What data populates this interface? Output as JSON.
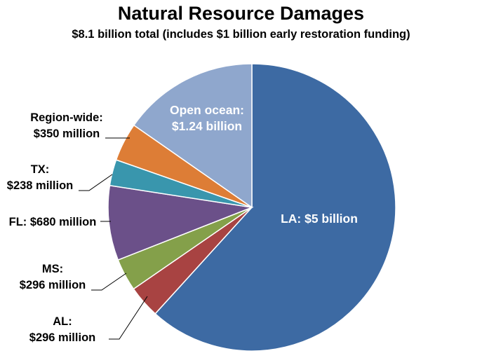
{
  "chart_data": {
    "type": "pie",
    "title": "Natural Resource Damages",
    "subtitle": "$8.1 billion total (includes $1 billion early restoration funding)",
    "slices": [
      {
        "key": "la",
        "label_lines": [
          "LA: $5 billion"
        ],
        "value": 5000,
        "color": "#3d6aa3",
        "label_inside": true
      },
      {
        "key": "al",
        "label_lines": [
          "AL:",
          "$296 million"
        ],
        "value": 296,
        "color": "#a84342",
        "label_inside": false
      },
      {
        "key": "ms",
        "label_lines": [
          "MS:",
          "$296 million"
        ],
        "value": 296,
        "color": "#84a04a",
        "label_inside": false
      },
      {
        "key": "fl",
        "label_lines": [
          "FL: $680 million"
        ],
        "value": 680,
        "color": "#6b5089",
        "label_inside": false
      },
      {
        "key": "tx",
        "label_lines": [
          "TX:",
          "$238 million"
        ],
        "value": 238,
        "color": "#3996ad",
        "label_inside": false
      },
      {
        "key": "region",
        "label_lines": [
          "Region-wide:",
          "$350 million"
        ],
        "value": 350,
        "color": "#dd7d36",
        "label_inside": false
      },
      {
        "key": "ocean",
        "label_lines": [
          "Open ocean:",
          "$1.24 billion"
        ],
        "value": 1240,
        "color": "#8fa7cd",
        "label_inside": true
      }
    ],
    "start_angle_deg": 0,
    "direction": "clockwise",
    "legend": "none"
  }
}
